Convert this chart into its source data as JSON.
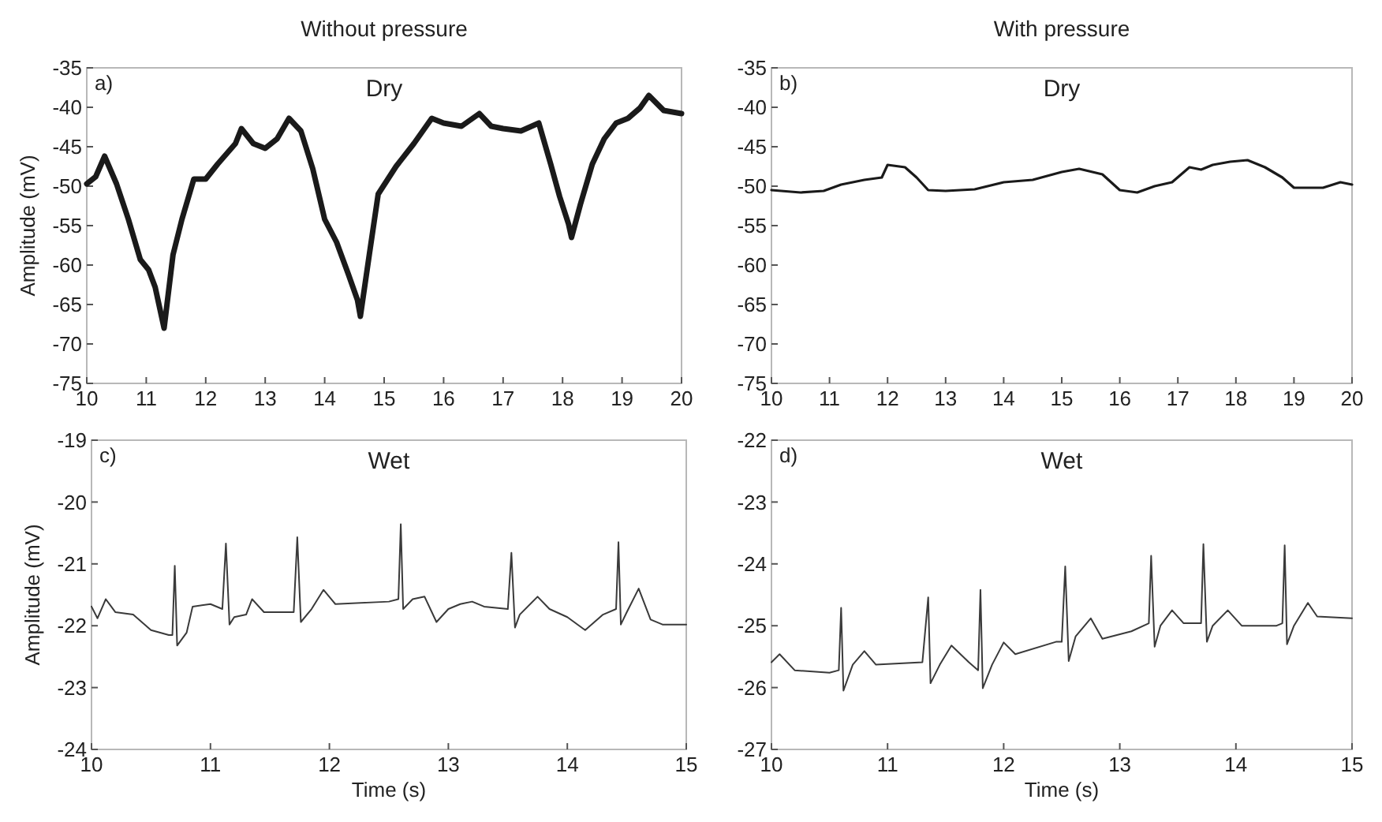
{
  "chart_data": [
    {
      "type": "line",
      "title": "Without pressure",
      "ylabel": "Amplitude (mV)",
      "annotations": [
        "a)",
        "Dry"
      ],
      "xlim": [
        10,
        20
      ],
      "xticks": [
        10,
        11,
        12,
        13,
        14,
        15,
        16,
        17,
        18,
        19,
        20
      ],
      "ylim": [
        -75,
        -35
      ],
      "yticks": [
        -75,
        -70,
        -65,
        -60,
        -55,
        -50,
        -45,
        -40,
        -35
      ],
      "grid": false,
      "x": [
        10,
        10.15,
        10.3,
        10.5,
        10.7,
        10.9,
        11.04,
        11.15,
        11.3,
        11.45,
        11.6,
        11.8,
        12,
        12.2,
        12.5,
        12.6,
        12.8,
        13,
        13.2,
        13.4,
        13.6,
        13.8,
        14,
        14.2,
        14.4,
        14.55,
        14.6,
        14.75,
        14.9,
        15.2,
        15.5,
        15.8,
        16,
        16.3,
        16.6,
        16.8,
        17,
        17.3,
        17.6,
        17.8,
        17.95,
        18.1,
        18.15,
        18.3,
        18.5,
        18.7,
        18.9,
        19.1,
        19.3,
        19.45,
        19.7,
        20
      ],
      "series": [
        {
          "color": "#1a1a1a",
          "values": [
            -49.7,
            -48.8,
            -46.2,
            -49.7,
            -54.2,
            -59.3,
            -60.6,
            -62.8,
            -68,
            -58.7,
            -54.2,
            -49.1,
            -49.1,
            -47.2,
            -44.6,
            -42.7,
            -44.6,
            -45.2,
            -44,
            -41.4,
            -43,
            -47.8,
            -54.2,
            -57.1,
            -61.2,
            -64.4,
            -66.5,
            -58.7,
            -51,
            -47.5,
            -44.6,
            -41.4,
            -42,
            -42.4,
            -40.8,
            -42.4,
            -42.7,
            -43,
            -42,
            -47.2,
            -51.3,
            -54.8,
            -56.5,
            -52.3,
            -47.2,
            -44,
            -42,
            -41.4,
            -40.1,
            -38.5,
            -40.4,
            -40.8
          ]
        }
      ]
    },
    {
      "type": "line",
      "title": "With pressure",
      "annotations": [
        "b)",
        "Dry"
      ],
      "xlim": [
        10,
        20
      ],
      "xticks": [
        10,
        11,
        12,
        13,
        14,
        15,
        16,
        17,
        18,
        19,
        20
      ],
      "ylim": [
        -75,
        -35
      ],
      "yticks": [
        -75,
        -70,
        -65,
        -60,
        -55,
        -50,
        -45,
        -40,
        -35
      ],
      "grid": false,
      "x": [
        10,
        10.5,
        10.9,
        11.2,
        11.6,
        11.9,
        12,
        12.3,
        12.5,
        12.7,
        13,
        13.5,
        14,
        14.5,
        15,
        15.3,
        15.7,
        16,
        16.3,
        16.6,
        16.9,
        17.2,
        17.4,
        17.6,
        17.9,
        18.2,
        18.5,
        18.8,
        19,
        19.5,
        19.8,
        20
      ],
      "series": [
        {
          "color": "#1a1a1a",
          "values": [
            -50.5,
            -50.8,
            -50.6,
            -49.8,
            -49.2,
            -48.9,
            -47.3,
            -47.6,
            -48.9,
            -50.5,
            -50.6,
            -50.4,
            -49.5,
            -49.2,
            -48.2,
            -47.8,
            -48.5,
            -50.5,
            -50.8,
            -50,
            -49.5,
            -47.6,
            -47.9,
            -47.3,
            -46.9,
            -46.7,
            -47.6,
            -48.9,
            -50.2,
            -50.2,
            -49.5,
            -49.8
          ]
        }
      ]
    },
    {
      "type": "line",
      "xlabel": "Time (s)",
      "ylabel": "Amplitude (mV)",
      "annotations": [
        "c)",
        "Wet"
      ],
      "xlim": [
        10,
        15
      ],
      "xticks": [
        10,
        11,
        12,
        13,
        14,
        15
      ],
      "ylim": [
        -24,
        -19
      ],
      "yticks": [
        -24,
        -23,
        -22,
        -21,
        -20,
        -19
      ],
      "grid": false,
      "x": [
        10,
        10.05,
        10.12,
        10.2,
        10.35,
        10.5,
        10.65,
        10.68,
        10.7,
        10.72,
        10.8,
        10.85,
        11,
        11.1,
        11.13,
        11.16,
        11.2,
        11.3,
        11.35,
        11.45,
        11.7,
        11.73,
        11.76,
        11.85,
        11.95,
        12.05,
        12.5,
        12.58,
        12.6,
        12.62,
        12.7,
        12.8,
        12.9,
        13,
        13.1,
        13.2,
        13.3,
        13.5,
        13.53,
        13.56,
        13.6,
        13.75,
        13.85,
        14,
        14.15,
        14.3,
        14.41,
        14.43,
        14.45,
        14.5,
        14.6,
        14.7,
        14.8,
        15
      ],
      "series": [
        {
          "color": "#3a3a3a",
          "values": [
            -21.69,
            -21.88,
            -21.57,
            -21.78,
            -21.82,
            -22.07,
            -22.15,
            -22.15,
            -21.03,
            -22.32,
            -22.11,
            -21.69,
            -21.65,
            -21.73,
            -20.67,
            -21.98,
            -21.86,
            -21.82,
            -21.57,
            -21.78,
            -21.78,
            -20.57,
            -21.94,
            -21.73,
            -21.42,
            -21.65,
            -21.61,
            -21.57,
            -20.36,
            -21.73,
            -21.57,
            -21.53,
            -21.94,
            -21.73,
            -21.65,
            -21.61,
            -21.69,
            -21.73,
            -20.82,
            -22.03,
            -21.82,
            -21.53,
            -21.73,
            -21.86,
            -22.07,
            -21.82,
            -21.73,
            -20.65,
            -21.98,
            -21.78,
            -21.4,
            -21.9,
            -21.98,
            -21.98
          ]
        }
      ]
    },
    {
      "type": "line",
      "xlabel": "Time (s)",
      "annotations": [
        "d)",
        "Wet"
      ],
      "xlim": [
        10,
        15
      ],
      "xticks": [
        10,
        11,
        12,
        13,
        14,
        15
      ],
      "ylim": [
        -27,
        -22
      ],
      "yticks": [
        -27,
        -26,
        -25,
        -24,
        -23,
        -22
      ],
      "grid": false,
      "x": [
        10,
        10.07,
        10.2,
        10.5,
        10.58,
        10.6,
        10.62,
        10.7,
        10.8,
        10.9,
        11.3,
        11.35,
        11.37,
        11.45,
        11.55,
        11.7,
        11.78,
        11.8,
        11.82,
        11.9,
        12,
        12.1,
        12.45,
        12.5,
        12.53,
        12.56,
        12.62,
        12.75,
        12.85,
        13.1,
        13.25,
        13.27,
        13.3,
        13.35,
        13.45,
        13.55,
        13.7,
        13.72,
        13.75,
        13.8,
        13.93,
        14.05,
        14.35,
        14.4,
        14.42,
        14.44,
        14.5,
        14.62,
        14.7,
        15
      ],
      "series": [
        {
          "color": "#3a3a3a",
          "values": [
            -25.59,
            -25.46,
            -25.72,
            -25.76,
            -25.72,
            -24.71,
            -26.05,
            -25.63,
            -25.41,
            -25.63,
            -25.59,
            -24.54,
            -25.93,
            -25.63,
            -25.32,
            -25.59,
            -25.72,
            -24.42,
            -26.01,
            -25.63,
            -25.27,
            -25.46,
            -25.26,
            -25.26,
            -24.04,
            -25.57,
            -25.17,
            -24.88,
            -25.21,
            -25.09,
            -24.96,
            -23.87,
            -25.34,
            -25.0,
            -24.75,
            -24.96,
            -24.96,
            -23.68,
            -25.26,
            -25.0,
            -24.75,
            -25.0,
            -25.0,
            -24.96,
            -23.7,
            -25.3,
            -25.0,
            -24.63,
            -24.85,
            -24.88
          ]
        }
      ]
    }
  ]
}
